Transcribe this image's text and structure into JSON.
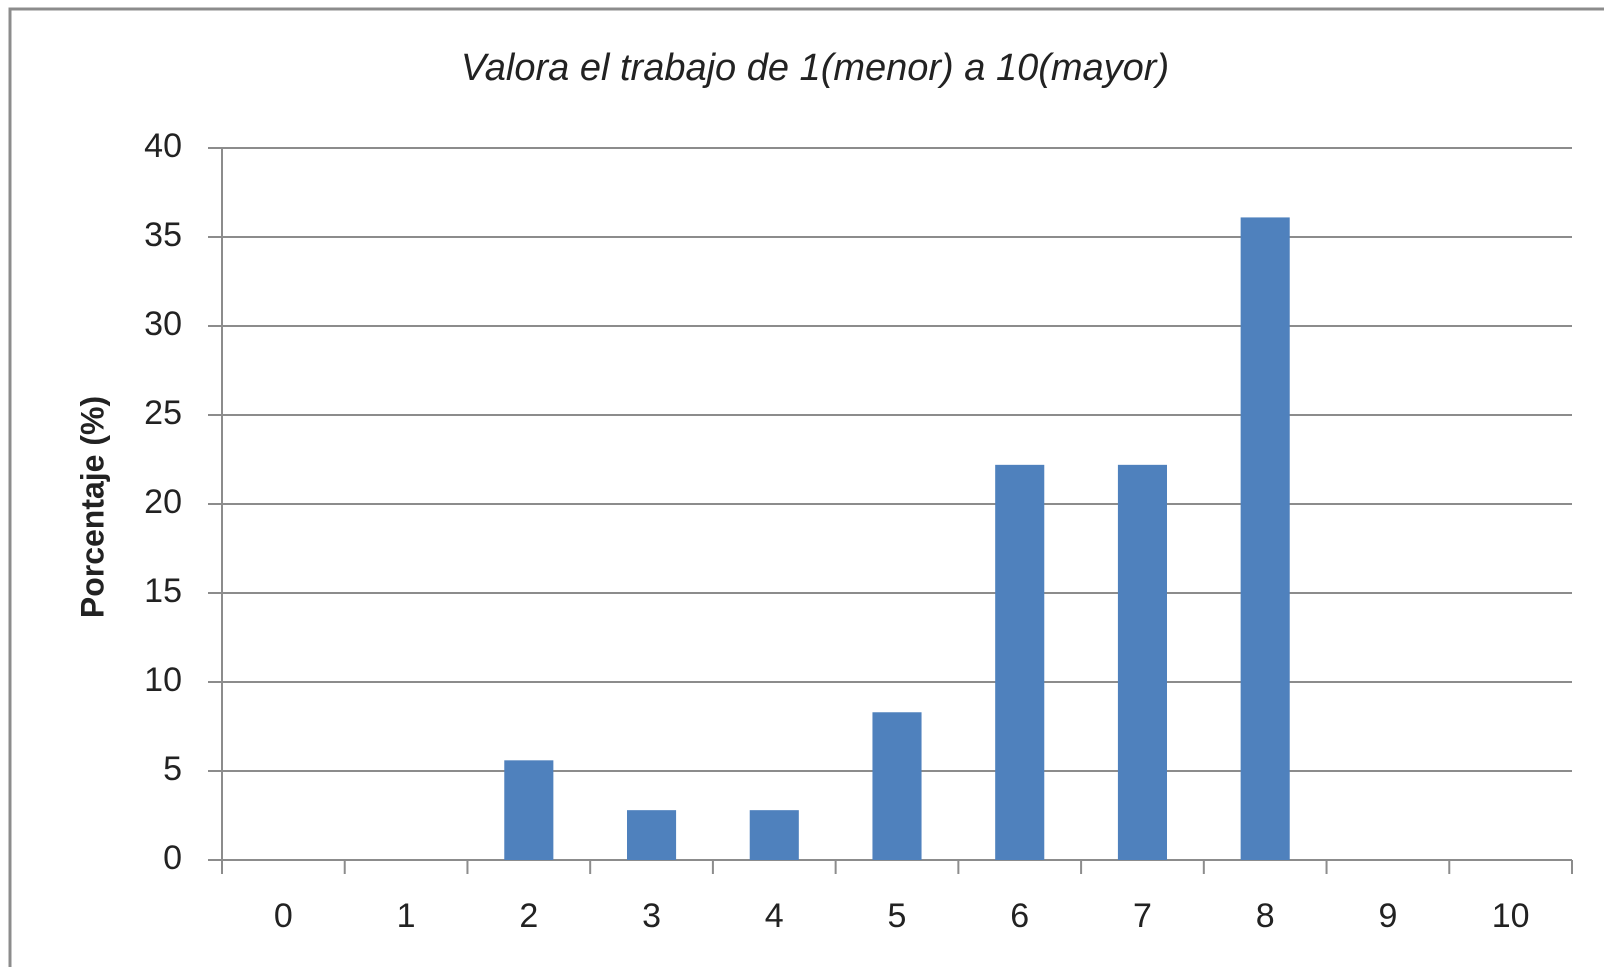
{
  "chart_data": {
    "type": "bar",
    "title": "Valora el trabajo de 1(menor) a 10(mayor)",
    "y_label": "Porcentaje (%)",
    "categories": [
      "0",
      "1",
      "2",
      "3",
      "4",
      "5",
      "6",
      "7",
      "8",
      "9",
      "10"
    ],
    "values": [
      0,
      0,
      5.6,
      2.8,
      2.8,
      8.3,
      22.2,
      22.2,
      36.1,
      0,
      0
    ],
    "color": "#4f81bd",
    "ylim": [
      0,
      40
    ],
    "yticks": [
      0,
      5,
      10,
      15,
      20,
      25,
      30,
      35,
      40
    ],
    "grid": true
  }
}
